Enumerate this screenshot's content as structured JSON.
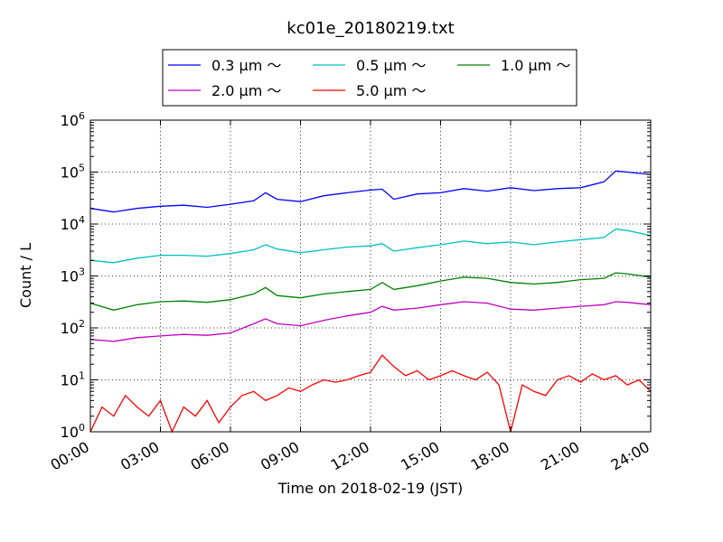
{
  "chart_data": {
    "type": "line",
    "title": "kc01e_20180219.txt",
    "xlabel": "Time on 2018-02-19 (JST)",
    "ylabel": "Count / L",
    "yscale": "log",
    "xlim": [
      "00:00",
      "24:00"
    ],
    "ylim": [
      1,
      1000000
    ],
    "x_ticks": [
      "00:00",
      "03:00",
      "06:00",
      "09:00",
      "12:00",
      "15:00",
      "18:00",
      "21:00",
      "24:00"
    ],
    "y_ticks": [
      {
        "base": "10",
        "exp": "0"
      },
      {
        "base": "10",
        "exp": "1"
      },
      {
        "base": "10",
        "exp": "2"
      },
      {
        "base": "10",
        "exp": "3"
      },
      {
        "base": "10",
        "exp": "4"
      },
      {
        "base": "10",
        "exp": "5"
      },
      {
        "base": "10",
        "exp": "6"
      }
    ],
    "grid": true,
    "legend": {
      "position": "top-center",
      "columns": 3
    },
    "series": [
      {
        "name": "0.3 μm ～",
        "color": "#0000ff",
        "x": [
          "00:00",
          "01:00",
          "02:00",
          "03:00",
          "04:00",
          "05:00",
          "06:00",
          "07:00",
          "07:30",
          "08:00",
          "09:00",
          "10:00",
          "11:00",
          "12:00",
          "12:30",
          "13:00",
          "14:00",
          "15:00",
          "16:00",
          "17:00",
          "18:00",
          "19:00",
          "20:00",
          "21:00",
          "22:00",
          "22:30",
          "23:00",
          "24:00"
        ],
        "values": [
          20000,
          17000,
          20000,
          22000,
          23000,
          21000,
          24000,
          28000,
          40000,
          30000,
          27000,
          35000,
          40000,
          45000,
          47000,
          30000,
          38000,
          40000,
          48000,
          43000,
          50000,
          44000,
          48000,
          50000,
          65000,
          105000,
          100000,
          90000
        ]
      },
      {
        "name": "0.5 μm ～",
        "color": "#00bfbf",
        "x": [
          "00:00",
          "01:00",
          "02:00",
          "03:00",
          "04:00",
          "05:00",
          "06:00",
          "07:00",
          "07:30",
          "08:00",
          "09:00",
          "10:00",
          "11:00",
          "12:00",
          "12:30",
          "13:00",
          "14:00",
          "15:00",
          "16:00",
          "17:00",
          "18:00",
          "19:00",
          "20:00",
          "21:00",
          "22:00",
          "22:30",
          "23:00",
          "24:00"
        ],
        "values": [
          2000,
          1800,
          2200,
          2500,
          2500,
          2400,
          2700,
          3200,
          4000,
          3300,
          2800,
          3200,
          3600,
          3800,
          4200,
          3000,
          3500,
          4000,
          4700,
          4200,
          4500,
          4000,
          4500,
          5000,
          5500,
          8000,
          7500,
          6000
        ]
      },
      {
        "name": "1.0 μm ～",
        "color": "#008000",
        "x": [
          "00:00",
          "01:00",
          "02:00",
          "03:00",
          "04:00",
          "05:00",
          "06:00",
          "07:00",
          "07:30",
          "08:00",
          "09:00",
          "10:00",
          "11:00",
          "12:00",
          "12:30",
          "13:00",
          "14:00",
          "15:00",
          "16:00",
          "17:00",
          "18:00",
          "19:00",
          "20:00",
          "21:00",
          "22:00",
          "22:30",
          "23:00",
          "24:00"
        ],
        "values": [
          300,
          220,
          280,
          320,
          330,
          310,
          350,
          450,
          600,
          420,
          380,
          450,
          500,
          550,
          750,
          550,
          650,
          800,
          950,
          900,
          750,
          700,
          750,
          850,
          900,
          1150,
          1100,
          950
        ]
      },
      {
        "name": "2.0 μm ～",
        "color": "#bf00bf",
        "x": [
          "00:00",
          "01:00",
          "02:00",
          "03:00",
          "04:00",
          "05:00",
          "06:00",
          "07:00",
          "07:30",
          "08:00",
          "09:00",
          "10:00",
          "11:00",
          "12:00",
          "12:30",
          "13:00",
          "14:00",
          "15:00",
          "16:00",
          "17:00",
          "18:00",
          "19:00",
          "20:00",
          "21:00",
          "22:00",
          "22:30",
          "23:00",
          "24:00"
        ],
        "values": [
          60,
          55,
          65,
          70,
          75,
          72,
          80,
          120,
          150,
          120,
          110,
          140,
          170,
          200,
          260,
          220,
          240,
          280,
          320,
          300,
          230,
          220,
          240,
          260,
          280,
          320,
          310,
          280
        ]
      },
      {
        "name": "5.0 μm ～",
        "color": "#ff0000",
        "x": [
          "00:00",
          "00:30",
          "01:00",
          "01:30",
          "02:00",
          "02:30",
          "03:00",
          "03:30",
          "04:00",
          "04:30",
          "05:00",
          "05:30",
          "06:00",
          "06:30",
          "07:00",
          "07:30",
          "08:00",
          "08:30",
          "09:00",
          "09:30",
          "10:00",
          "10:30",
          "11:00",
          "11:30",
          "12:00",
          "12:30",
          "13:00",
          "13:30",
          "14:00",
          "14:30",
          "15:00",
          "15:30",
          "16:00",
          "16:30",
          "17:00",
          "17:30",
          "18:00",
          "18:30",
          "19:00",
          "19:30",
          "20:00",
          "20:30",
          "21:00",
          "21:30",
          "22:00",
          "22:30",
          "23:00",
          "23:30",
          "24:00"
        ],
        "values": [
          1,
          3,
          2,
          5,
          3,
          2,
          4,
          1,
          3,
          2,
          4,
          1.5,
          3,
          5,
          6,
          4,
          5,
          7,
          6,
          8,
          10,
          9,
          10,
          12,
          14,
          30,
          18,
          12,
          15,
          10,
          12,
          15,
          12,
          10,
          14,
          8,
          1,
          8,
          6,
          5,
          10,
          12,
          9,
          13,
          10,
          12,
          8,
          10,
          6
        ]
      }
    ]
  }
}
